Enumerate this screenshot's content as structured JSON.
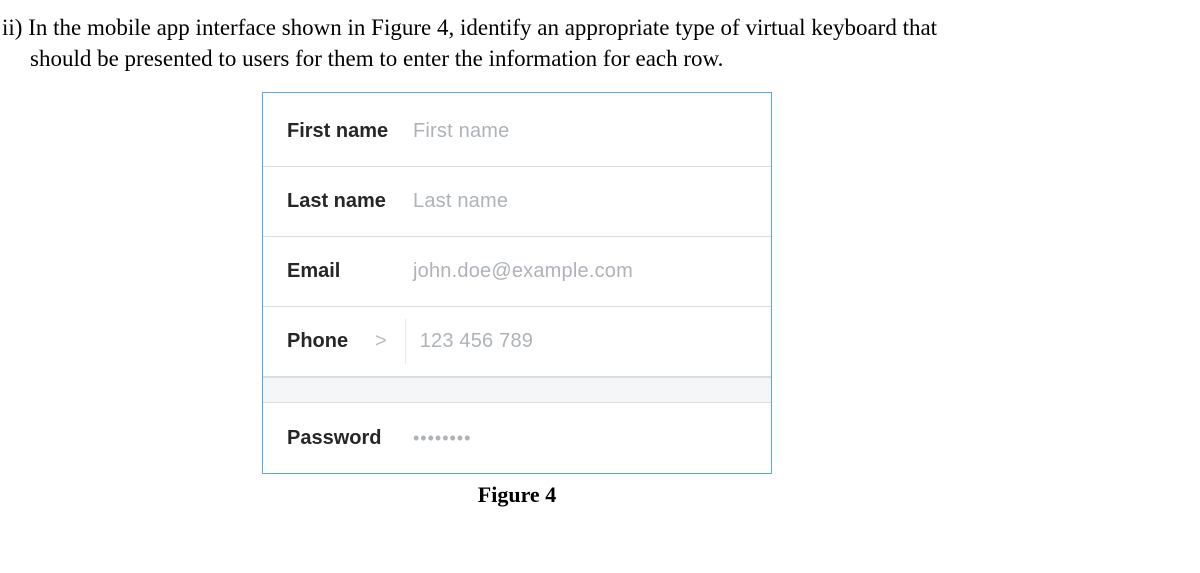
{
  "question": {
    "prefix": "ii) ",
    "line1": "In the mobile app interface shown in Figure 4, identify an appropriate type of virtual keyboard that",
    "line2": "should be presented to users for them to enter the information for each row."
  },
  "figure": {
    "caption": "Figure 4",
    "border_color": "#5aa6e0",
    "row_border_color": "#d9dde0",
    "gap_bg": "#f5f6f7",
    "label_color": "#262628",
    "placeholder_color": "#aeb3b8",
    "chevron_color": "#b6bbc0"
  },
  "form": {
    "first_name": {
      "label": "First name",
      "placeholder": "First name"
    },
    "last_name": {
      "label": "Last name",
      "placeholder": "Last name"
    },
    "email": {
      "label": "Email",
      "placeholder": "john.doe@example.com"
    },
    "phone": {
      "label": "Phone",
      "chevron": ">",
      "placeholder": "123 456 789"
    },
    "password": {
      "label": "Password",
      "placeholder": "••••••••"
    }
  }
}
